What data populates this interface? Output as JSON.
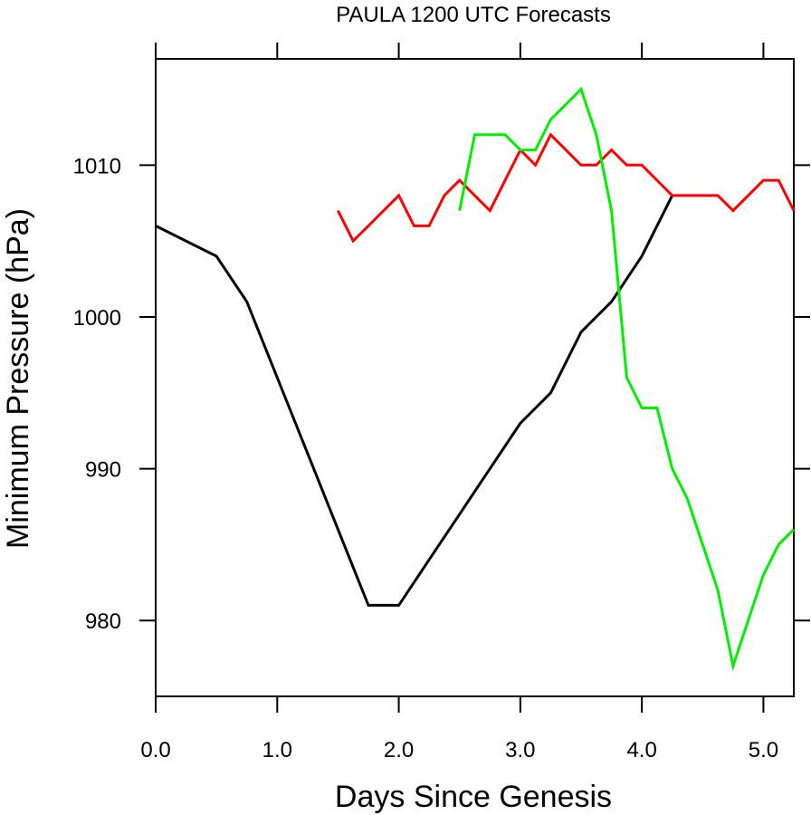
{
  "chart_data": {
    "type": "line",
    "title": "PAULA 1200 UTC Forecasts",
    "xlabel": "Days Since Genesis",
    "ylabel": "Minimum Pressure (hPa)",
    "xlim": [
      0,
      5.25
    ],
    "ylim": [
      975,
      1017
    ],
    "grid": false,
    "legend": "none",
    "x_ticks": [
      {
        "value": 0,
        "label": "0.0"
      },
      {
        "value": 1,
        "label": "1.0"
      },
      {
        "value": 2,
        "label": "2.0"
      },
      {
        "value": 3,
        "label": "3.0"
      },
      {
        "value": 4,
        "label": "4.0"
      },
      {
        "value": 5,
        "label": "5.0"
      }
    ],
    "y_ticks": [
      {
        "value": 980,
        "label": "980"
      },
      {
        "value": 990,
        "label": "990"
      },
      {
        "value": 1000,
        "label": "1000"
      },
      {
        "value": 1010,
        "label": "1010"
      }
    ],
    "series": [
      {
        "color": "#000000",
        "x": [
          0,
          0.5,
          0.75,
          1.0,
          1.25,
          1.5,
          1.75,
          2.0,
          2.25,
          2.5,
          2.75,
          3.0,
          3.25,
          3.5,
          3.75,
          4.0,
          4.25
        ],
        "values": [
          1006,
          1004,
          1001,
          996,
          991,
          986,
          981,
          981,
          984,
          987,
          990,
          993,
          995,
          999,
          1001,
          1004,
          1008
        ]
      },
      {
        "color": "#ff0000",
        "x": [
          1.5,
          1.625,
          1.75,
          1.875,
          2.0,
          2.125,
          2.25,
          2.375,
          2.5,
          2.625,
          2.75,
          2.875,
          3.0,
          3.125,
          3.25,
          3.375,
          3.5,
          3.625,
          3.75,
          3.875,
          4.0,
          4.125,
          4.25,
          4.375,
          4.5,
          4.625,
          4.75,
          4.875,
          5.0,
          5.125,
          5.25
        ],
        "values": [
          1007,
          1005,
          1006,
          1007,
          1008,
          1006,
          1006,
          1008,
          1009,
          1008,
          1007,
          1009,
          1011,
          1010,
          1012,
          1011,
          1010,
          1010,
          1011,
          1010,
          1010,
          1009,
          1008,
          1008,
          1008,
          1008,
          1007,
          1008,
          1009,
          1009,
          1007
        ]
      },
      {
        "color": "#00ee00",
        "x": [
          2.5,
          2.625,
          2.75,
          2.875,
          3.0,
          3.125,
          3.25,
          3.375,
          3.5,
          3.625,
          3.75,
          3.875,
          4.0,
          4.125,
          4.25,
          4.375,
          4.5,
          4.625,
          4.75,
          4.875,
          5.0,
          5.125,
          5.25
        ],
        "values": [
          1007,
          1012,
          1012,
          1012,
          1011,
          1011,
          1013,
          1014,
          1015,
          1012,
          1007,
          996,
          994,
          994,
          990,
          988,
          985,
          982,
          977,
          980,
          983,
          985,
          986
        ]
      }
    ]
  }
}
